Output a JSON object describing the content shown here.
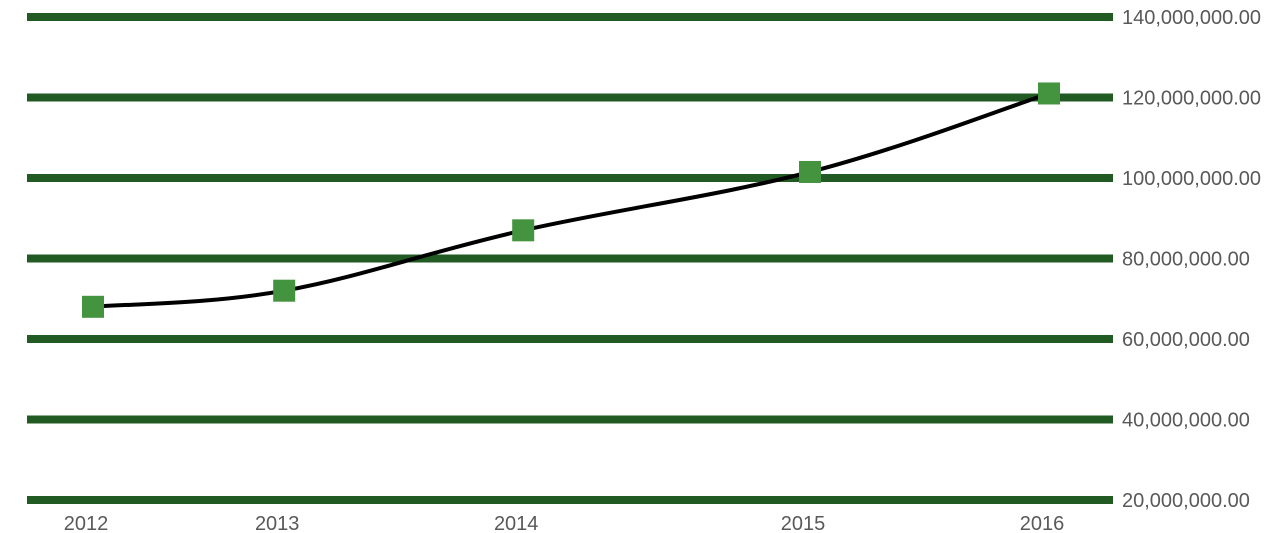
{
  "chart_data": {
    "type": "line",
    "title": "",
    "xlabel": "",
    "ylabel": "",
    "x_categories": [
      "2012",
      "2013",
      "2014",
      "2015",
      "2016"
    ],
    "x": [
      2012.0,
      2013.0,
      2014.25,
      2015.75,
      2017.0
    ],
    "series": [
      {
        "name": "",
        "points": [
          {
            "x": 2012.0,
            "y": 68000000
          },
          {
            "x": 2013.0,
            "y": 72000000
          },
          {
            "x": 2014.25,
            "y": 87000000
          },
          {
            "x": 2015.75,
            "y": 101500000
          },
          {
            "x": 2017.0,
            "y": 121000000
          }
        ]
      }
    ],
    "y_axis": {
      "position": "right",
      "ylim": [
        20000000,
        140000000
      ],
      "ticks": [
        20000000,
        40000000,
        60000000,
        80000000,
        100000000,
        120000000,
        140000000
      ],
      "tick_labels": [
        "20,000,000.00",
        "40,000,000.00",
        "60,000,000.00",
        "80,000,000.00",
        "100,000,000.00",
        "120,000,000.00",
        "140,000,000.00"
      ]
    },
    "grid": true,
    "legend": "none",
    "colors": {
      "grid": "#225A23",
      "line": "#000000",
      "marker": "#43933F",
      "tick_text": "#595959"
    }
  }
}
